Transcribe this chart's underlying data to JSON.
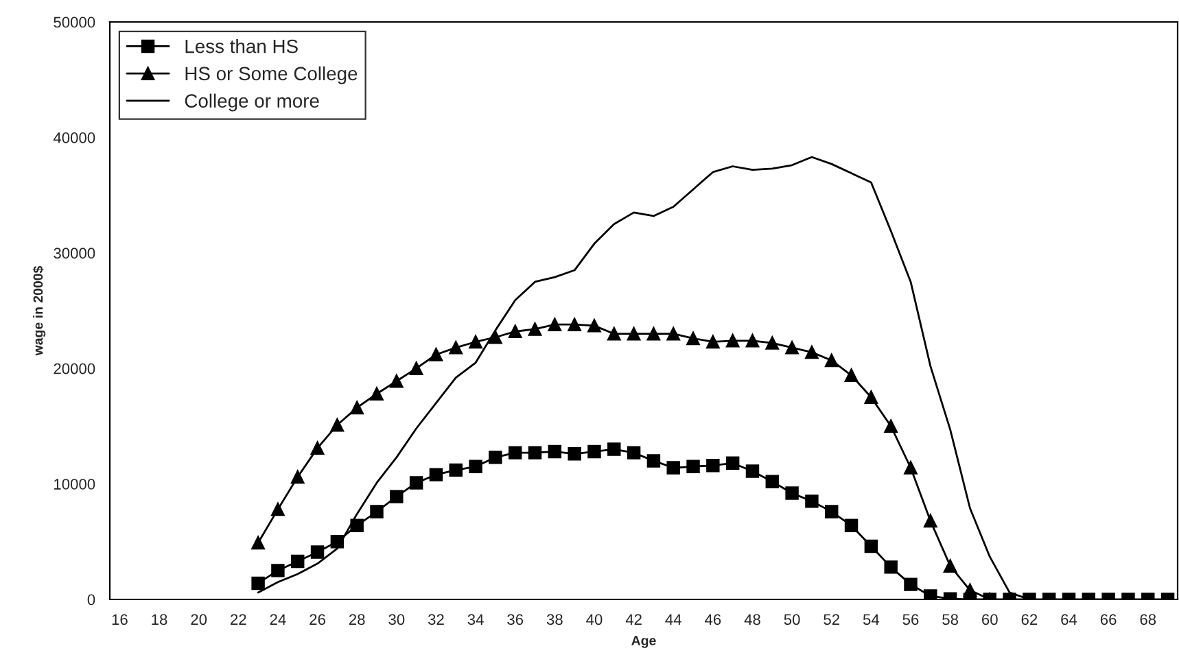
{
  "chart_data": {
    "type": "line",
    "xlabel": "Age",
    "ylabel": "wage in 2000$",
    "categories": [
      "16",
      null,
      "18",
      null,
      "20",
      null,
      "22",
      null,
      "24",
      null,
      "26",
      null,
      "28",
      null,
      "30",
      null,
      "32",
      null,
      "34",
      null,
      "36",
      null,
      "38",
      null,
      "40",
      null,
      "42",
      null,
      "44",
      null,
      "46",
      null,
      "48",
      null,
      "50",
      null,
      "52",
      null,
      "54",
      null,
      "56",
      null,
      "58",
      null,
      "60",
      null,
      "62",
      null,
      "64",
      null,
      "66",
      null,
      "68",
      null
    ],
    "ylim": [
      0,
      50000
    ],
    "yticks": [
      0,
      10000,
      20000,
      30000,
      40000,
      50000
    ],
    "grid": false,
    "legend": "top left",
    "series": [
      {
        "name": "Less than HS",
        "color": "#000000",
        "marker": "square",
        "values": [
          null,
          null,
          null,
          null,
          null,
          null,
          null,
          1400,
          2500,
          3300,
          4100,
          5000,
          6400,
          7600,
          8900,
          10100,
          10800,
          11200,
          11500,
          12300,
          12700,
          12700,
          12800,
          12600,
          12800,
          13000,
          12700,
          12000,
          11400,
          11500,
          11600,
          11800,
          11100,
          10200,
          9200,
          8500,
          7600,
          6400,
          4600,
          2800,
          1300,
          300,
          50,
          0,
          0,
          0,
          0,
          0,
          0,
          0,
          0,
          0,
          0,
          0
        ]
      },
      {
        "name": "HS or Some College",
        "color": "#000000",
        "marker": "triangle",
        "values": [
          null,
          null,
          null,
          null,
          null,
          null,
          null,
          4900,
          7800,
          10600,
          13100,
          15100,
          16600,
          17800,
          18900,
          20000,
          21200,
          21800,
          22300,
          22700,
          23200,
          23400,
          23800,
          23800,
          23700,
          23000,
          23000,
          23000,
          23000,
          22600,
          22300,
          22400,
          22400,
          22200,
          21800,
          21400,
          20700,
          19400,
          17500,
          15000,
          11400,
          6800,
          2900,
          800,
          0,
          null,
          null,
          null,
          null,
          null,
          null,
          null,
          null,
          null
        ]
      },
      {
        "name": "College or more",
        "color": "#000000",
        "marker": "none",
        "values": [
          null,
          null,
          null,
          null,
          null,
          null,
          null,
          600,
          1500,
          2200,
          3100,
          4400,
          7400,
          10100,
          12300,
          14800,
          17000,
          19200,
          20500,
          23300,
          25900,
          27500,
          27900,
          28500,
          30800,
          32500,
          33500,
          33200,
          34000,
          35500,
          37000,
          37500,
          37200,
          37300,
          37600,
          38300,
          37700,
          36900,
          36100,
          31900,
          27500,
          20200,
          14700,
          7900,
          3700,
          600,
          0,
          null,
          null,
          null,
          null,
          null,
          null,
          null
        ]
      }
    ]
  }
}
